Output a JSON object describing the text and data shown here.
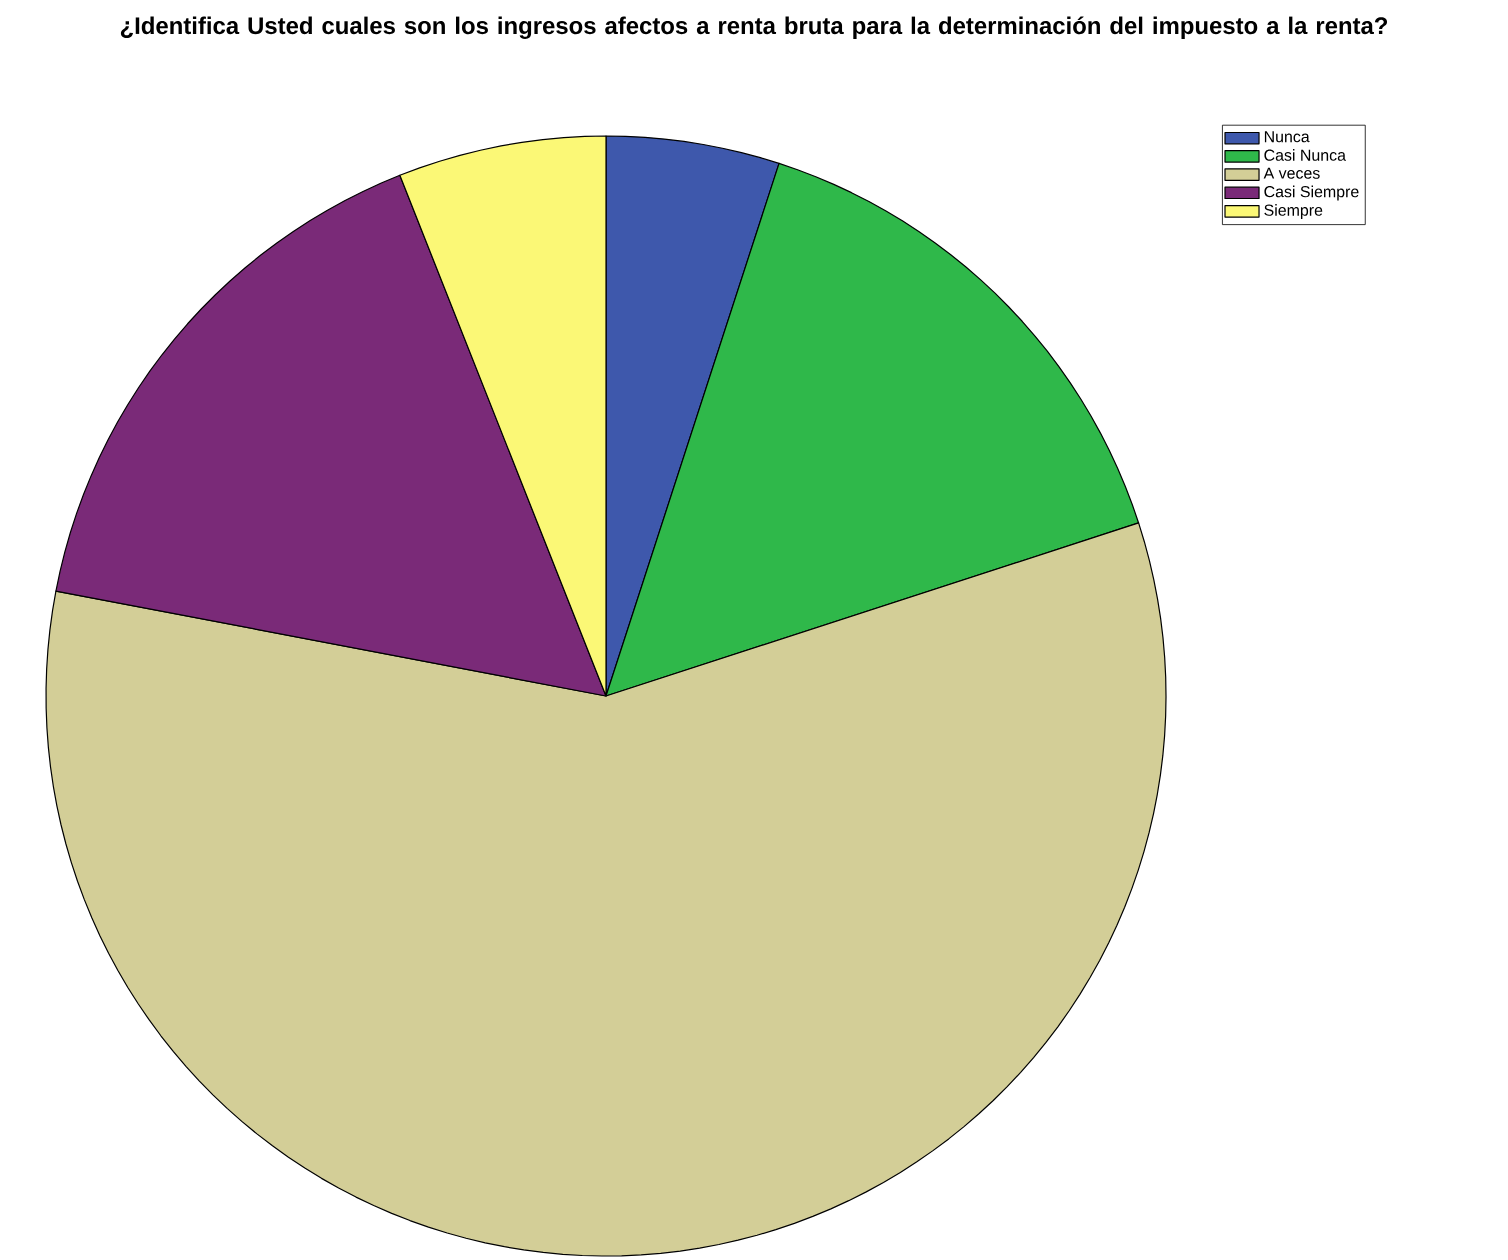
{
  "chart_data": {
    "type": "pie",
    "title": "¿Identifica Usted cuales son los ingresos afectos a renta bruta para la determinación del impuesto a la renta?",
    "categories": [
      "Nunca",
      "Casi Nunca",
      "A veces",
      "Casi Siempre",
      "Siempre"
    ],
    "values": [
      5,
      15,
      58,
      16,
      6
    ],
    "colors": [
      "#3e58ac",
      "#2fb84a",
      "#d3ce97",
      "#7a2a78",
      "#fbf876"
    ],
    "legend": "top right"
  }
}
